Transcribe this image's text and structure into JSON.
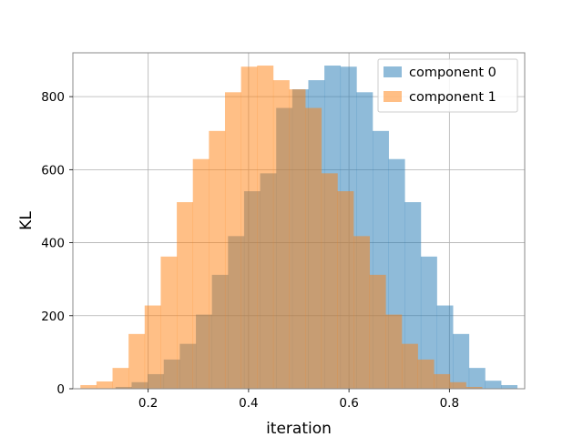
{
  "chart_data": {
    "type": "histogram",
    "xlabel": "iteration",
    "ylabel": "KL",
    "xlim": [
      0.05,
      0.95
    ],
    "ylim": [
      0,
      920
    ],
    "xticks": [
      0.2,
      0.4,
      0.6,
      0.8
    ],
    "xtick_labels": [
      "0.2",
      "0.4",
      "0.6",
      "0.8"
    ],
    "yticks": [
      0,
      200,
      400,
      600,
      800
    ],
    "ytick_labels": [
      "0",
      "200",
      "400",
      "600",
      "800"
    ],
    "grid": true,
    "legend_position": "top-right",
    "bin_width": 0.032,
    "series": [
      {
        "name": "component 0",
        "color": "#1f77b4",
        "alpha": 0.5,
        "bin_starts": [
          0.135,
          0.167,
          0.199,
          0.231,
          0.263,
          0.295,
          0.327,
          0.359,
          0.391,
          0.423,
          0.455,
          0.487,
          0.519,
          0.551,
          0.583,
          0.615,
          0.647,
          0.679,
          0.711,
          0.743,
          0.775,
          0.807,
          0.839,
          0.871,
          0.903
        ],
        "counts": [
          5,
          18,
          40,
          80,
          123,
          203,
          312,
          418,
          541,
          590,
          769,
          820,
          845,
          885,
          882,
          812,
          706,
          629,
          511,
          362,
          228,
          150,
          57,
          22,
          10
        ]
      },
      {
        "name": "component 1",
        "color": "#ff7f0e",
        "alpha": 0.5,
        "bin_starts": [
          0.065,
          0.097,
          0.129,
          0.161,
          0.193,
          0.225,
          0.257,
          0.289,
          0.321,
          0.353,
          0.385,
          0.417,
          0.449,
          0.481,
          0.513,
          0.545,
          0.577,
          0.609,
          0.641,
          0.673,
          0.705,
          0.737,
          0.769,
          0.801,
          0.833
        ],
        "counts": [
          10,
          20,
          57,
          150,
          228,
          362,
          511,
          629,
          706,
          812,
          882,
          885,
          845,
          820,
          769,
          590,
          541,
          418,
          312,
          203,
          123,
          80,
          40,
          18,
          5
        ]
      }
    ]
  }
}
